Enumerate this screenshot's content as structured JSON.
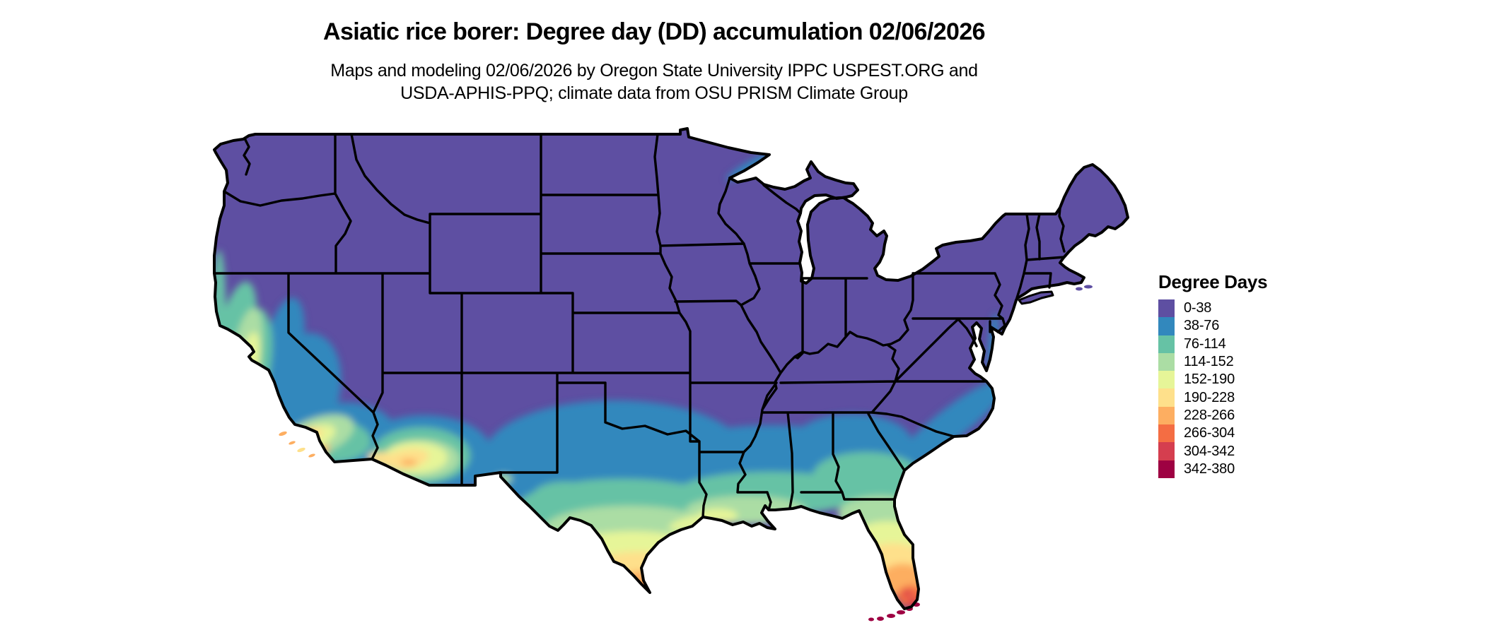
{
  "header": {
    "title": "Asiatic rice borer: Degree day (DD) accumulation 02/06/2026",
    "subtitle_line1": "Maps and modeling 02/06/2026 by Oregon State University IPPC USPEST.ORG and",
    "subtitle_line2": "USDA-APHIS-PPQ; climate data from OSU PRISM Climate Group"
  },
  "legend": {
    "title": "Degree Days",
    "items": [
      {
        "label": "0-38",
        "color": "#5e4fa2"
      },
      {
        "label": "38-76",
        "color": "#3288bd"
      },
      {
        "label": "76-114",
        "color": "#66c2a5"
      },
      {
        "label": "114-152",
        "color": "#abdda4"
      },
      {
        "label": "152-190",
        "color": "#e6f598"
      },
      {
        "label": "190-228",
        "color": "#fee08b"
      },
      {
        "label": "228-266",
        "color": "#fdae61"
      },
      {
        "label": "266-304",
        "color": "#f46d43"
      },
      {
        "label": "304-342",
        "color": "#d53e4f"
      },
      {
        "label": "342-380",
        "color": "#9e0142"
      }
    ]
  },
  "map": {
    "name": "Continental United States map of accumulated degree days",
    "base_color": "#5e4fa2",
    "border_color": "#000000",
    "background": "#ffffff"
  },
  "chart_data": {
    "type": "choropleth_map",
    "title": "Asiatic rice borer: Degree day (DD) accumulation 02/06/2026",
    "variable": "Accumulated degree days (DD)",
    "date_shown": "02/06/2026",
    "region": "Continental United States",
    "legend_title": "Degree Days",
    "legend_position": "right",
    "bins": [
      "0-38",
      "38-76",
      "76-114",
      "114-152",
      "152-190",
      "190-228",
      "228-266",
      "266-304",
      "304-342",
      "342-380"
    ],
    "bin_colors": [
      "#5e4fa2",
      "#3288bd",
      "#66c2a5",
      "#abdda4",
      "#e6f598",
      "#fee08b",
      "#fdae61",
      "#f46d43",
      "#d53e4f",
      "#9e0142"
    ],
    "visible_pattern": {
      "northern_and_central_us": "0-38",
      "north_texas_through_gulf_states_band": "38-76",
      "gulf_coast_band": "76-152",
      "south_texas": "152-304",
      "north_florida": "114-190",
      "central_florida": "190-266",
      "south_florida": "266-342",
      "florida_keys": "342-380",
      "california_coast_and_central_valley": "38-228",
      "southern_california_coast": "190-304",
      "southern_arizona": "76-266",
      "carolina_and_georgia_coast": "38-76"
    }
  }
}
